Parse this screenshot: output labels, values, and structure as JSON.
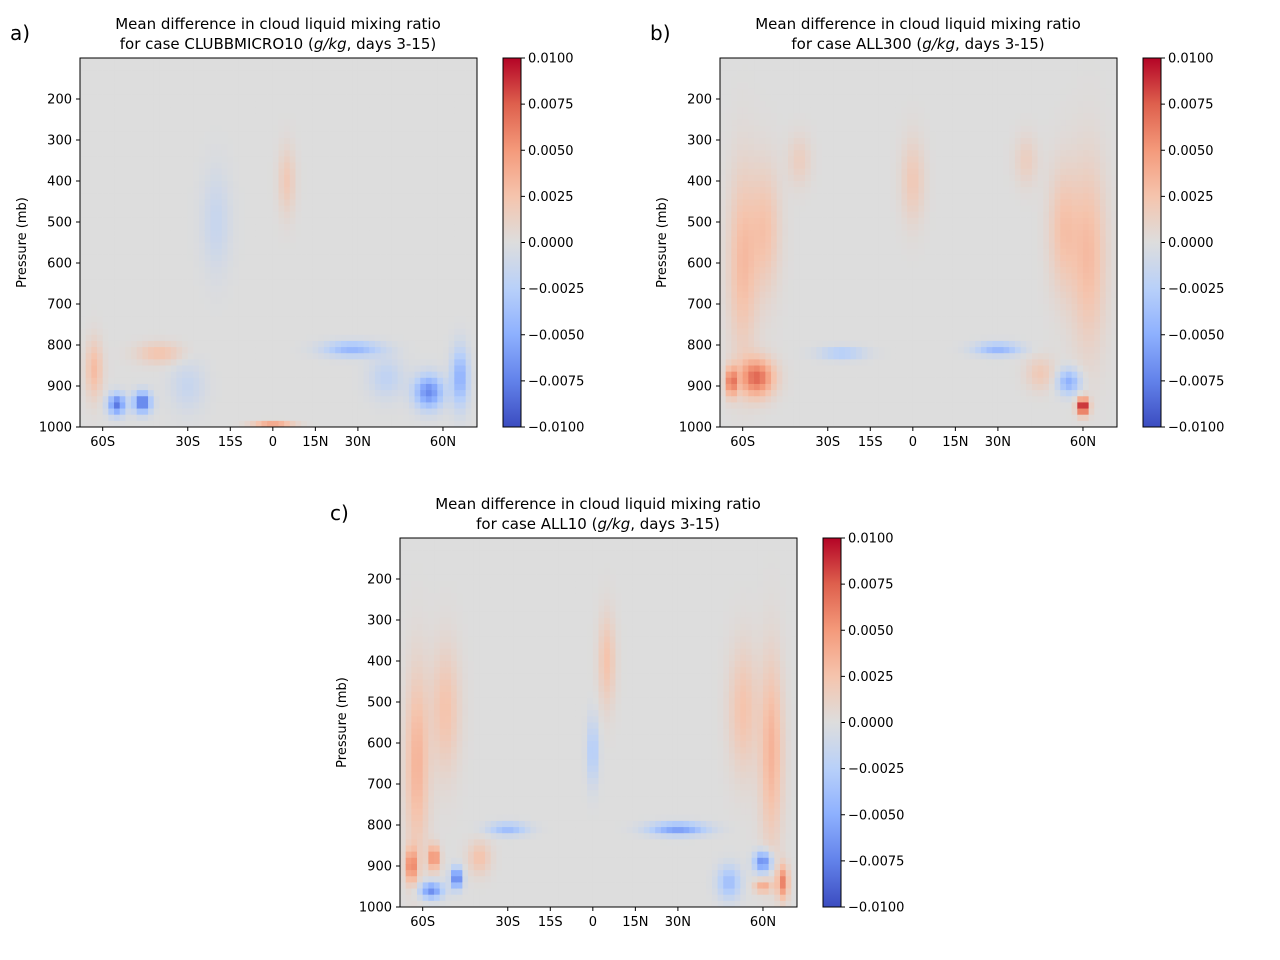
{
  "chart_data": [
    {
      "type": "heatmap",
      "panel_label": "a)",
      "title_line1": "Mean difference in cloud liquid mixing ratio",
      "title_line2_prefix": "for case CLUBBMICRO10 (",
      "title_units": "g/kg",
      "title_line2_suffix": ", days 3-15)",
      "ylabel": "Pressure (mb)",
      "x_ticks": [
        {
          "label": "60S",
          "value": -60
        },
        {
          "label": "30S",
          "value": -30
        },
        {
          "label": "15S",
          "value": -15
        },
        {
          "label": "0",
          "value": 0
        },
        {
          "label": "15N",
          "value": 15
        },
        {
          "label": "30N",
          "value": 30
        },
        {
          "label": "60N",
          "value": 60
        }
      ],
      "y_ticks": [
        {
          "label": "200",
          "value": 200
        },
        {
          "label": "300",
          "value": 300
        },
        {
          "label": "400",
          "value": 400
        },
        {
          "label": "500",
          "value": 500
        },
        {
          "label": "600",
          "value": 600
        },
        {
          "label": "700",
          "value": 700
        },
        {
          "label": "800",
          "value": 800
        },
        {
          "label": "900",
          "value": 900
        },
        {
          "label": "1000",
          "value": 1000
        }
      ],
      "xlim": [
        -68,
        72
      ],
      "ylim": [
        1000,
        100
      ],
      "colorbar": {
        "range": [
          -0.01,
          0.01
        ],
        "ticks": [
          "0.0100",
          "0.0075",
          "0.0050",
          "0.0025",
          "0.0000",
          "−0.0025",
          "−0.0050",
          "−0.0075",
          "−0.0100"
        ],
        "tick_values": [
          0.01,
          0.0075,
          0.005,
          0.0025,
          0,
          -0.0025,
          -0.005,
          -0.0075,
          -0.01
        ],
        "colormap": "coolwarm"
      },
      "features": [
        {
          "lat": -55,
          "p": 945,
          "value": -0.008,
          "dlat": 3,
          "dp": 25
        },
        {
          "lat": -46,
          "p": 940,
          "value": -0.0085,
          "dlat": 3,
          "dp": 25
        },
        {
          "lat": -63,
          "p": 860,
          "value": 0.003,
          "dlat": 3,
          "dp": 70
        },
        {
          "lat": -40,
          "p": 820,
          "value": 0.0025,
          "dlat": 8,
          "dp": 25
        },
        {
          "lat": 0,
          "p": 995,
          "value": 0.0045,
          "dlat": 7,
          "dp": 8
        },
        {
          "lat": 28,
          "p": 810,
          "value": -0.0045,
          "dlat": 10,
          "dp": 18
        },
        {
          "lat": 55,
          "p": 915,
          "value": -0.007,
          "dlat": 5,
          "dp": 40
        },
        {
          "lat": 66,
          "p": 880,
          "value": -0.005,
          "dlat": 3,
          "dp": 70
        },
        {
          "lat": 5,
          "p": 400,
          "value": 0.002,
          "dlat": 3,
          "dp": 80
        },
        {
          "lat": -20,
          "p": 500,
          "value": -0.0015,
          "dlat": 5,
          "dp": 120
        },
        {
          "lat": 40,
          "p": 880,
          "value": -0.002,
          "dlat": 6,
          "dp": 50
        },
        {
          "lat": -30,
          "p": 900,
          "value": -0.0015,
          "dlat": 6,
          "dp": 60
        }
      ]
    },
    {
      "type": "heatmap",
      "panel_label": "b)",
      "title_line1": "Mean difference in cloud liquid mixing ratio",
      "title_line2_prefix": "for case ALL300 (",
      "title_units": "g/kg",
      "title_line2_suffix": ", days 3-15)",
      "ylabel": "Pressure (mb)",
      "x_ticks": [
        {
          "label": "60S",
          "value": -60
        },
        {
          "label": "30S",
          "value": -30
        },
        {
          "label": "15S",
          "value": -15
        },
        {
          "label": "0",
          "value": 0
        },
        {
          "label": "15N",
          "value": 15
        },
        {
          "label": "30N",
          "value": 30
        },
        {
          "label": "60N",
          "value": 60
        }
      ],
      "y_ticks": [
        {
          "label": "200",
          "value": 200
        },
        {
          "label": "300",
          "value": 300
        },
        {
          "label": "400",
          "value": 400
        },
        {
          "label": "500",
          "value": 500
        },
        {
          "label": "600",
          "value": 600
        },
        {
          "label": "700",
          "value": 700
        },
        {
          "label": "800",
          "value": 800
        },
        {
          "label": "900",
          "value": 900
        },
        {
          "label": "1000",
          "value": 1000
        }
      ],
      "xlim": [
        -68,
        72
      ],
      "ylim": [
        1000,
        100
      ],
      "colorbar": {
        "range": [
          -0.01,
          0.01
        ],
        "ticks": [
          "0.0100",
          "0.0075",
          "0.0050",
          "0.0025",
          "0.0000",
          "−0.0025",
          "−0.0050",
          "−0.0075",
          "−0.0100"
        ],
        "tick_values": [
          0.01,
          0.0075,
          0.005,
          0.0025,
          0,
          -0.0025,
          -0.005,
          -0.0075,
          -0.01
        ],
        "colormap": "coolwarm"
      },
      "features": [
        {
          "lat": -60,
          "p": 600,
          "value": 0.003,
          "dlat": 5,
          "dp": 220
        },
        {
          "lat": -52,
          "p": 520,
          "value": 0.0025,
          "dlat": 5,
          "dp": 150
        },
        {
          "lat": -55,
          "p": 880,
          "value": 0.007,
          "dlat": 6,
          "dp": 45
        },
        {
          "lat": -64,
          "p": 890,
          "value": 0.0065,
          "dlat": 2,
          "dp": 35
        },
        {
          "lat": 62,
          "p": 580,
          "value": 0.003,
          "dlat": 6,
          "dp": 220
        },
        {
          "lat": 53,
          "p": 520,
          "value": 0.0025,
          "dlat": 5,
          "dp": 150
        },
        {
          "lat": 60,
          "p": 950,
          "value": 0.011,
          "dlat": 2,
          "dp": 20
        },
        {
          "lat": 55,
          "p": 890,
          "value": -0.005,
          "dlat": 4,
          "dp": 30
        },
        {
          "lat": 30,
          "p": 810,
          "value": -0.0045,
          "dlat": 8,
          "dp": 15
        },
        {
          "lat": -25,
          "p": 820,
          "value": -0.003,
          "dlat": 8,
          "dp": 15
        },
        {
          "lat": 0,
          "p": 400,
          "value": 0.002,
          "dlat": 4,
          "dp": 100
        },
        {
          "lat": -40,
          "p": 350,
          "value": 0.0015,
          "dlat": 4,
          "dp": 60
        },
        {
          "lat": 40,
          "p": 350,
          "value": 0.0015,
          "dlat": 4,
          "dp": 60
        },
        {
          "lat": 45,
          "p": 870,
          "value": 0.002,
          "dlat": 5,
          "dp": 40
        }
      ]
    },
    {
      "type": "heatmap",
      "panel_label": "c)",
      "title_line1": "Mean difference in cloud liquid mixing ratio",
      "title_line2_prefix": "for case ALL10 (",
      "title_units": "g/kg",
      "title_line2_suffix": ", days 3-15)",
      "ylabel": "Pressure (mb)",
      "x_ticks": [
        {
          "label": "60S",
          "value": -60
        },
        {
          "label": "30S",
          "value": -30
        },
        {
          "label": "15S",
          "value": -15
        },
        {
          "label": "0",
          "value": 0
        },
        {
          "label": "15N",
          "value": 15
        },
        {
          "label": "30N",
          "value": 30
        },
        {
          "label": "60N",
          "value": 60
        }
      ],
      "y_ticks": [
        {
          "label": "200",
          "value": 200
        },
        {
          "label": "300",
          "value": 300
        },
        {
          "label": "400",
          "value": 400
        },
        {
          "label": "500",
          "value": 500
        },
        {
          "label": "600",
          "value": 600
        },
        {
          "label": "700",
          "value": 700
        },
        {
          "label": "800",
          "value": 800
        },
        {
          "label": "900",
          "value": 900
        },
        {
          "label": "1000",
          "value": 1000
        }
      ],
      "xlim": [
        -68,
        72
      ],
      "ylim": [
        1000,
        100
      ],
      "colorbar": {
        "range": [
          -0.01,
          0.01
        ],
        "ticks": [
          "0.0100",
          "0.0075",
          "0.0050",
          "0.0025",
          "0.0000",
          "−0.0025",
          "−0.0050",
          "−0.0075",
          "−0.0100"
        ],
        "tick_values": [
          0.01,
          0.0075,
          0.005,
          0.0025,
          0,
          -0.0025,
          -0.005,
          -0.0075,
          -0.01
        ],
        "colormap": "coolwarm"
      },
      "features": [
        {
          "lat": -62,
          "p": 650,
          "value": 0.0035,
          "dlat": 4,
          "dp": 220
        },
        {
          "lat": -52,
          "p": 520,
          "value": 0.0025,
          "dlat": 5,
          "dp": 150
        },
        {
          "lat": -64,
          "p": 900,
          "value": 0.006,
          "dlat": 2,
          "dp": 40
        },
        {
          "lat": -56,
          "p": 880,
          "value": 0.006,
          "dlat": 2,
          "dp": 30
        },
        {
          "lat": -57,
          "p": 960,
          "value": -0.007,
          "dlat": 4,
          "dp": 20
        },
        {
          "lat": -48,
          "p": 930,
          "value": -0.0085,
          "dlat": 2,
          "dp": 25
        },
        {
          "lat": 63,
          "p": 620,
          "value": 0.0035,
          "dlat": 4,
          "dp": 220
        },
        {
          "lat": 53,
          "p": 520,
          "value": 0.0025,
          "dlat": 5,
          "dp": 150
        },
        {
          "lat": 60,
          "p": 890,
          "value": -0.0075,
          "dlat": 3,
          "dp": 25
        },
        {
          "lat": 67,
          "p": 940,
          "value": 0.006,
          "dlat": 2,
          "dp": 40
        },
        {
          "lat": 60,
          "p": 950,
          "value": 0.004,
          "dlat": 3,
          "dp": 15
        },
        {
          "lat": 30,
          "p": 810,
          "value": -0.006,
          "dlat": 10,
          "dp": 15
        },
        {
          "lat": -30,
          "p": 810,
          "value": -0.004,
          "dlat": 7,
          "dp": 15
        },
        {
          "lat": 0,
          "p": 620,
          "value": -0.003,
          "dlat": 2,
          "dp": 80
        },
        {
          "lat": 5,
          "p": 400,
          "value": 0.0025,
          "dlat": 3,
          "dp": 110
        },
        {
          "lat": 48,
          "p": 940,
          "value": -0.004,
          "dlat": 4,
          "dp": 40
        },
        {
          "lat": -40,
          "p": 880,
          "value": 0.0025,
          "dlat": 4,
          "dp": 40
        }
      ]
    }
  ]
}
